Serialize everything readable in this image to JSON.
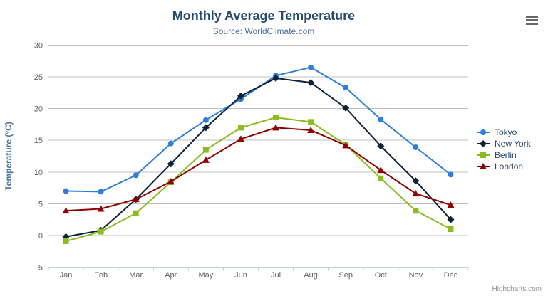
{
  "header": {
    "title": "Monthly Average Temperature",
    "subtitle": "Source: WorldClimate.com"
  },
  "credits": "Highcharts.com",
  "context_menu": {
    "icon": "hamburger-menu-icon"
  },
  "colors": {
    "title": "#274b6d",
    "subtitle": "#4d759e",
    "axis_title": "#4d759e",
    "tick_label": "#606060",
    "grid": "#c0c0c0",
    "axis_line": "#c0d0e0",
    "legend_text": "#274b6d",
    "credits": "#909090",
    "menu_icon": "#666666"
  },
  "chart_data": {
    "type": "line",
    "title": "Monthly Average Temperature",
    "subtitle": "Source: WorldClimate.com",
    "xlabel": "",
    "ylabel": "Temperature (°C)",
    "ylim": [
      -5,
      30
    ],
    "yticks": [
      -5,
      0,
      5,
      10,
      15,
      20,
      25,
      30
    ],
    "grid": true,
    "legend_position": "right",
    "categories": [
      "Jan",
      "Feb",
      "Mar",
      "Apr",
      "May",
      "Jun",
      "Jul",
      "Aug",
      "Sep",
      "Oct",
      "Nov",
      "Dec"
    ],
    "series": [
      {
        "name": "Tokyo",
        "color": "#2f7ed8",
        "marker": "circle",
        "values": [
          7.0,
          6.9,
          9.5,
          14.5,
          18.2,
          21.5,
          25.2,
          26.5,
          23.3,
          18.3,
          13.9,
          9.6
        ]
      },
      {
        "name": "New York",
        "color": "#0d233a",
        "marker": "diamond",
        "values": [
          -0.2,
          0.8,
          5.7,
          11.3,
          17.0,
          22.0,
          24.8,
          24.1,
          20.1,
          14.1,
          8.6,
          2.5
        ]
      },
      {
        "name": "Berlin",
        "color": "#8bbc21",
        "marker": "square",
        "values": [
          -0.9,
          0.6,
          3.5,
          8.4,
          13.5,
          17.0,
          18.6,
          17.9,
          14.3,
          9.0,
          3.9,
          1.0
        ]
      },
      {
        "name": "London",
        "color": "#910000",
        "marker": "triangle",
        "values": [
          3.9,
          4.2,
          5.7,
          8.5,
          11.9,
          15.2,
          17.0,
          16.6,
          14.2,
          10.3,
          6.6,
          4.8
        ]
      }
    ]
  }
}
